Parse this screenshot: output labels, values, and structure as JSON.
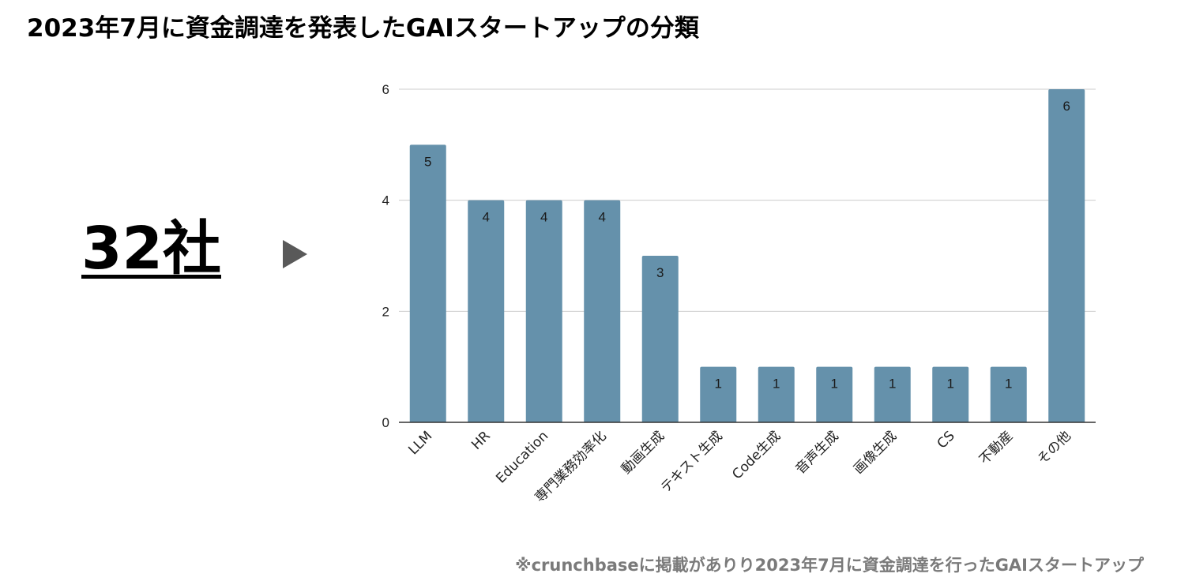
{
  "header": {
    "title": "2023年7月に資金調達を発表したGAIスタートアップの分類"
  },
  "summary": {
    "count_label": "32社",
    "arrow_icon": "play-triangle-icon"
  },
  "footnote": "※crunchbaseに掲載がありり2023年7月に資金調達を行ったGAIスタートアップ",
  "colors": {
    "bar": "#6591ab",
    "gridline": "#cccccc",
    "axis": "#333333",
    "arrow": "#595959",
    "footnote": "#7a7a7a"
  },
  "chart_data": {
    "type": "bar",
    "title": "",
    "xlabel": "",
    "ylabel": "",
    "categories": [
      "LLM",
      "HR",
      "Education",
      "専門業務効率化",
      "動画生成",
      "テキスト生成",
      "Code生成",
      "音声生成",
      "画像生成",
      "CS",
      "不動産",
      "その他"
    ],
    "values": [
      5,
      4,
      4,
      4,
      3,
      1,
      1,
      1,
      1,
      1,
      1,
      6
    ],
    "data_labels": [
      "5",
      "4",
      "4",
      "4",
      "3",
      "1",
      "1",
      "1",
      "1",
      "1",
      "1",
      "6"
    ],
    "ylim": [
      0,
      6
    ],
    "yticks": [
      0,
      2,
      4,
      6
    ],
    "ytick_labels": [
      "0",
      "2",
      "4",
      "6"
    ],
    "grid": true,
    "legend": "none"
  }
}
